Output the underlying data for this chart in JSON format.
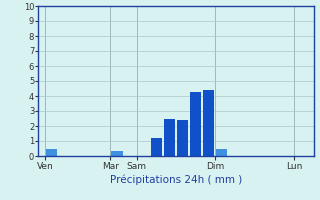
{
  "title": "",
  "xlabel": "Précipitations 24h ( mm )",
  "ylabel": "",
  "ylim": [
    0,
    10
  ],
  "yticks": [
    0,
    1,
    2,
    3,
    4,
    5,
    6,
    7,
    8,
    9,
    10
  ],
  "background_color": "#d8f2f2",
  "grid_color": "#a8c8c8",
  "bar_color_main": "#1050c8",
  "bar_color_light": "#4090e0",
  "spine_color": "#2040a0",
  "xlabel_color": "#2040a0",
  "day_labels": [
    "Ven",
    "Mar",
    "Sam",
    "Dim",
    "Lun"
  ],
  "day_tick_positions": [
    0.5,
    5.5,
    7.5,
    13.5,
    19.5
  ],
  "vline_positions": [
    0.5,
    5.5,
    7.5,
    13.5,
    19.5
  ],
  "bars": [
    {
      "x": 1.0,
      "height": 0.5
    },
    {
      "x": 6.0,
      "height": 0.35
    },
    {
      "x": 9.0,
      "height": 1.2
    },
    {
      "x": 10.0,
      "height": 2.5
    },
    {
      "x": 11.0,
      "height": 2.4
    },
    {
      "x": 12.0,
      "height": 4.3
    },
    {
      "x": 13.0,
      "height": 4.4
    },
    {
      "x": 14.0,
      "height": 0.45
    }
  ],
  "bar_width": 0.85,
  "xlim": [
    0,
    21
  ],
  "figsize": [
    3.2,
    2.0
  ],
  "dpi": 100
}
